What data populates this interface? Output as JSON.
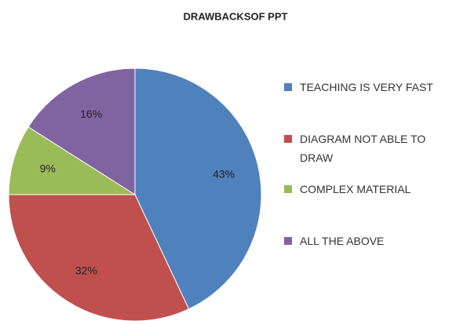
{
  "chart_data": {
    "type": "pie",
    "title": "DRAWBACKSOF PPT",
    "categories": [
      "TEACHING IS VERY FAST",
      "DIAGRAM NOT ABLE TO DRAW",
      "COMPLEX MATERIAL",
      "ALL THE ABOVE"
    ],
    "values": [
      43,
      32,
      9,
      16
    ],
    "value_labels": [
      "43%",
      "32%",
      "9%",
      "16%"
    ],
    "colors": [
      "#4f81bd",
      "#c0504d",
      "#9bbb59",
      "#8064a2"
    ],
    "legend": "right"
  }
}
